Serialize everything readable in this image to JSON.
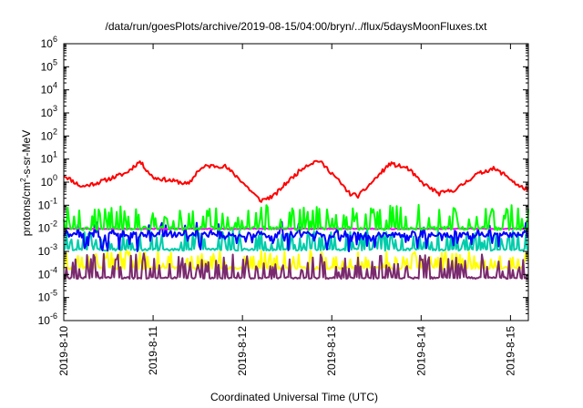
{
  "chart_data": {
    "type": "line",
    "title": "/data/run/goesPlots/archive/2019-08-15/04:00/bryn/../flux/5daysMoonFluxes.txt",
    "xlabel": "Coordinated Universal Time (UTC)",
    "ylabel": {
      "base": "protons/cm",
      "sup": "2",
      "rest": "-s-sr-MeV"
    },
    "yscale": "log",
    "ylim": [
      1e-06,
      1000000.0
    ],
    "xlim": [
      0,
      5.2
    ],
    "grid": false,
    "legend": "none",
    "y_ticks": [
      {
        "exp": "-6",
        "value": 1e-06
      },
      {
        "exp": "-5",
        "value": 1e-05
      },
      {
        "exp": "-4",
        "value": 0.0001
      },
      {
        "exp": "-3",
        "value": 0.001
      },
      {
        "exp": "-2",
        "value": 0.01
      },
      {
        "exp": "-1",
        "value": 0.1
      },
      {
        "exp": "0",
        "value": 1
      },
      {
        "exp": "1",
        "value": 10
      },
      {
        "exp": "2",
        "value": 100
      },
      {
        "exp": "3",
        "value": 1000
      },
      {
        "exp": "4",
        "value": 10000
      },
      {
        "exp": "5",
        "value": 100000
      },
      {
        "exp": "6",
        "value": 1000000
      }
    ],
    "x_ticks": [
      {
        "label": "2019-8-10",
        "value": 0
      },
      {
        "label": "2019-8-11",
        "value": 1
      },
      {
        "label": "2019-8-12",
        "value": 2
      },
      {
        "label": "2019-8-13",
        "value": 3
      },
      {
        "label": "2019-8-14",
        "value": 4
      },
      {
        "label": "2019-8-15",
        "value": 5
      }
    ],
    "series": [
      {
        "color": "#ff0000",
        "style": "smooth",
        "shape": [
          0,
          0.3,
          0.2,
          -0.2,
          0.4,
          0.0,
          0.7,
          0.4,
          0.85,
          0.9,
          1.0,
          0.2,
          1.3,
          0.0,
          1.4,
          -0.1,
          1.5,
          0.5,
          1.6,
          0.7,
          1.8,
          0.7,
          1.95,
          0.2,
          2.2,
          -0.8,
          2.35,
          -0.6,
          2.5,
          0.0,
          2.7,
          0.7,
          2.85,
          0.95,
          3.0,
          0.4,
          3.2,
          -0.5,
          3.3,
          -0.6,
          3.45,
          0.0,
          3.65,
          0.8,
          3.85,
          0.6,
          4.0,
          0.0,
          4.2,
          -0.5,
          4.4,
          -0.3,
          4.6,
          0.3,
          4.8,
          0.6,
          4.95,
          0.3,
          5.1,
          -0.2,
          5.2,
          -0.3
        ],
        "noise": 0.09,
        "seed": 11
      },
      {
        "color": "#00ff00",
        "style": "spiky",
        "base": -2.0,
        "noise": 0.08,
        "spike_prob": 0.32,
        "spike_min": 0.3,
        "spike_max": 1.0,
        "seed": 21
      },
      {
        "color": "#ff00ff",
        "style": "flat",
        "base": -2.02,
        "noise": 0.02,
        "seed": 33
      },
      {
        "color": "#0000ff",
        "style": "spiky",
        "base": -2.28,
        "noise": 0.12,
        "spike_prob": 0.3,
        "spike_min": -0.7,
        "spike_max": 0.55,
        "seed": 45
      },
      {
        "color": "#00ccaa",
        "style": "spiky",
        "base": -2.92,
        "noise": 0.05,
        "spike_prob": 0.3,
        "spike_min": 0.2,
        "spike_max": 0.85,
        "seed": 57
      },
      {
        "color": "#ffff00",
        "style": "spiky",
        "base": -3.72,
        "noise": 0.05,
        "spike_prob": 0.35,
        "spike_min": 0.2,
        "spike_max": 0.75,
        "seed": 69
      },
      {
        "color": "#7a2a6e",
        "style": "spiky",
        "base": -4.15,
        "noise": 0.04,
        "spike_prob": 0.36,
        "spike_min": 0.25,
        "spike_max": 1.05,
        "seed": 81
      }
    ]
  }
}
